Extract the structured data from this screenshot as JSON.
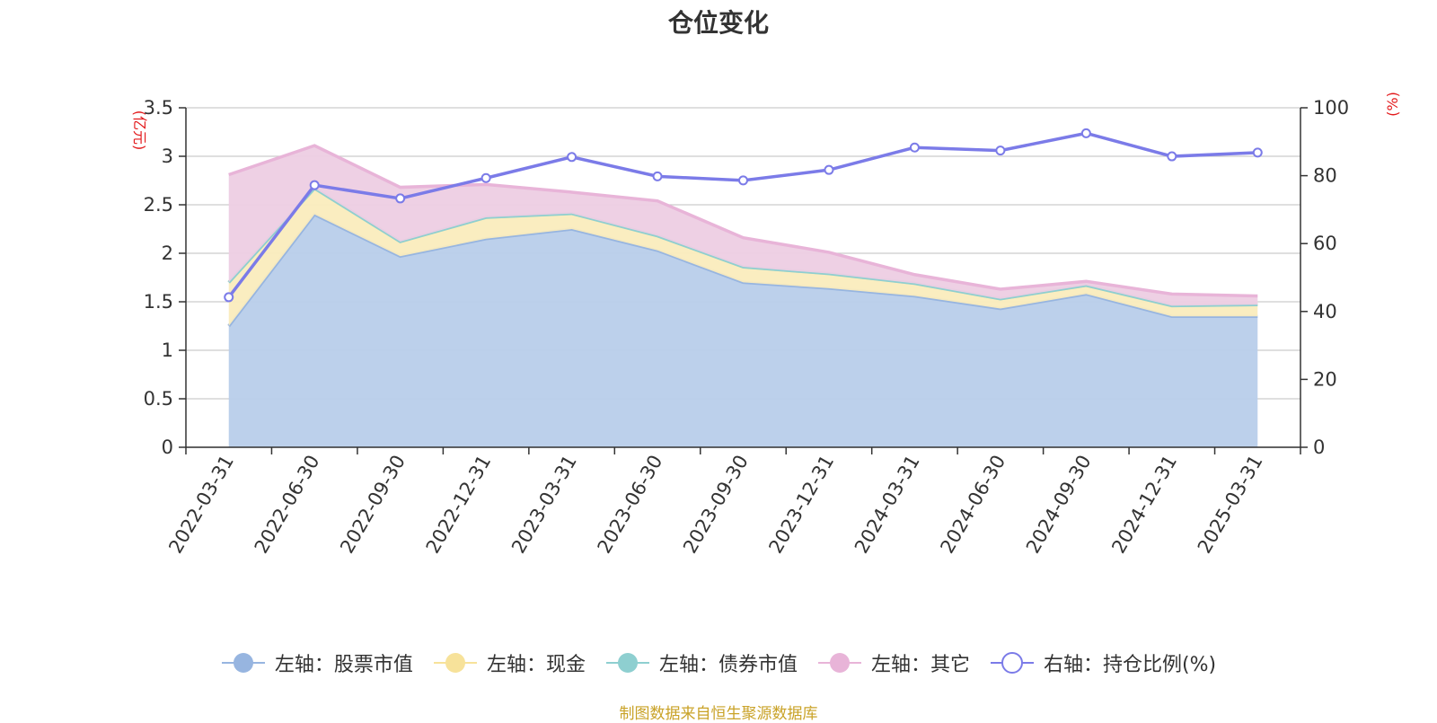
{
  "title": "仓位变化",
  "source": "制图数据来自恒生聚源数据库",
  "chart_data": {
    "type": "area",
    "categories": [
      "2022-03-31",
      "2022-06-30",
      "2022-09-30",
      "2022-12-31",
      "2023-03-31",
      "2023-06-30",
      "2023-09-30",
      "2023-12-31",
      "2024-03-31",
      "2024-06-30",
      "2024-09-30",
      "2024-12-31",
      "2025-03-31"
    ],
    "left_axis": {
      "unit": "(亿元)",
      "ylim": [
        0,
        3.5
      ],
      "ticks": [
        "0",
        "0.5",
        "1",
        "1.5",
        "2",
        "2.5",
        "3",
        "3.5"
      ]
    },
    "right_axis": {
      "unit": "(%)",
      "ylim": [
        0,
        100
      ],
      "ticks": [
        "0",
        "20",
        "40",
        "60",
        "80",
        "100"
      ]
    },
    "stacked": true,
    "grid": true,
    "legend_position": "bottom",
    "series": [
      {
        "name": "左轴：股票市值",
        "axis": "left",
        "type": "area",
        "color": "#97b5e0",
        "fill": "#b8cdea",
        "values": [
          1.25,
          2.4,
          1.97,
          2.15,
          2.25,
          2.03,
          1.7,
          1.64,
          1.56,
          1.43,
          1.58,
          1.35,
          1.35
        ]
      },
      {
        "name": "左轴：现金",
        "axis": "left",
        "type": "area",
        "color": "#f7e29a",
        "fill": "#faecbd",
        "values": [
          0.45,
          0.27,
          0.15,
          0.22,
          0.16,
          0.15,
          0.16,
          0.15,
          0.13,
          0.1,
          0.09,
          0.11,
          0.12
        ]
      },
      {
        "name": "左轴：债券市值",
        "axis": "left",
        "type": "area",
        "color": "#8ecfd0",
        "fill": "#b5e0e0",
        "values": [
          0,
          0,
          0,
          0,
          0,
          0,
          0,
          0,
          0,
          0,
          0,
          0,
          0
        ]
      },
      {
        "name": "左轴：其它",
        "axis": "left",
        "type": "area",
        "color": "#e8b4d8",
        "fill": "#edcde3",
        "values": [
          1.11,
          0.44,
          0.56,
          0.34,
          0.22,
          0.36,
          0.3,
          0.22,
          0.09,
          0.1,
          0.04,
          0.12,
          0.09
        ]
      },
      {
        "name": "右轴：持仓比例(%)",
        "axis": "right",
        "type": "line",
        "color": "#7b7be8",
        "values": [
          44.2,
          77.2,
          73.3,
          79.3,
          85.5,
          79.8,
          78.6,
          81.7,
          88.3,
          87.4,
          92.5,
          85.7,
          86.8
        ]
      }
    ]
  }
}
